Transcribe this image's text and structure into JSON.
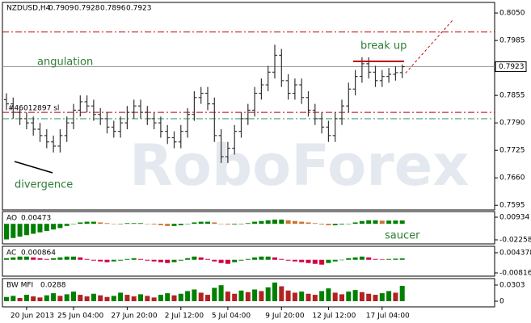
{
  "chart_data": [
    {
      "type": "ohlc",
      "title": "NZDUSD,H4",
      "categories": [
        null,
        null,
        null,
        "20 Jun 2013",
        null,
        null,
        null,
        null,
        null,
        null,
        "25 Jun 04:00",
        null,
        null,
        null,
        null,
        null,
        null,
        null,
        "27 Jun 20:00",
        null,
        null,
        null,
        null,
        null,
        null,
        null,
        "2 Jul 12:00",
        null,
        null,
        null,
        null,
        null,
        null,
        "5 Jul 04:00",
        null,
        null,
        null,
        null,
        null,
        null,
        null,
        "9 Jul 20:00",
        null,
        null,
        null,
        null,
        null,
        null,
        "12 Jul 12:00",
        null,
        null,
        null,
        null,
        null,
        null,
        null,
        "17 Jul 04:00",
        null,
        null,
        null
      ],
      "ohlc": [
        [
          0.7845,
          0.786,
          0.782,
          0.7835
        ],
        [
          0.7835,
          0.785,
          0.78,
          0.7815
        ],
        [
          0.7815,
          0.783,
          0.7785,
          0.78
        ],
        [
          0.78,
          0.7815,
          0.7775,
          0.779
        ],
        [
          0.779,
          0.7805,
          0.776,
          0.7775
        ],
        [
          0.7775,
          0.779,
          0.7745,
          0.776
        ],
        [
          0.776,
          0.7775,
          0.773,
          0.7745
        ],
        [
          0.7745,
          0.776,
          0.772,
          0.7735
        ],
        [
          0.7735,
          0.7775,
          0.772,
          0.776
        ],
        [
          0.776,
          0.7805,
          0.7745,
          0.779
        ],
        [
          0.779,
          0.7835,
          0.7775,
          0.782
        ],
        [
          0.782,
          0.7855,
          0.7805,
          0.784
        ],
        [
          0.784,
          0.7855,
          0.7815,
          0.783
        ],
        [
          0.783,
          0.7845,
          0.7795,
          0.781
        ],
        [
          0.781,
          0.7825,
          0.7785,
          0.78
        ],
        [
          0.78,
          0.7815,
          0.7765,
          0.778
        ],
        [
          0.778,
          0.7795,
          0.7755,
          0.777
        ],
        [
          0.777,
          0.7805,
          0.7755,
          0.779
        ],
        [
          0.779,
          0.783,
          0.7775,
          0.7815
        ],
        [
          0.7815,
          0.7845,
          0.78,
          0.783
        ],
        [
          0.783,
          0.7845,
          0.78,
          0.7815
        ],
        [
          0.7815,
          0.783,
          0.7785,
          0.78
        ],
        [
          0.78,
          0.7815,
          0.7775,
          0.779
        ],
        [
          0.779,
          0.7805,
          0.7755,
          0.777
        ],
        [
          0.777,
          0.7785,
          0.774,
          0.7755
        ],
        [
          0.7755,
          0.777,
          0.773,
          0.7745
        ],
        [
          0.7745,
          0.7785,
          0.773,
          0.777
        ],
        [
          0.777,
          0.7825,
          0.7755,
          0.781
        ],
        [
          0.781,
          0.7865,
          0.7795,
          0.785
        ],
        [
          0.785,
          0.7875,
          0.7835,
          0.786
        ],
        [
          0.786,
          0.7875,
          0.782,
          0.7835
        ],
        [
          0.7835,
          0.785,
          0.7745,
          0.776
        ],
        [
          0.776,
          0.7775,
          0.7695,
          0.771
        ],
        [
          0.771,
          0.7745,
          0.7695,
          0.773
        ],
        [
          0.773,
          0.7785,
          0.7715,
          0.777
        ],
        [
          0.777,
          0.7815,
          0.7755,
          0.78
        ],
        [
          0.78,
          0.7835,
          0.7785,
          0.782
        ],
        [
          0.782,
          0.7875,
          0.7805,
          0.786
        ],
        [
          0.786,
          0.7895,
          0.7845,
          0.788
        ],
        [
          0.788,
          0.7925,
          0.7865,
          0.791
        ],
        [
          0.791,
          0.7975,
          0.7895,
          0.795
        ],
        [
          0.795,
          0.7965,
          0.7875,
          0.789
        ],
        [
          0.789,
          0.7905,
          0.7845,
          0.786
        ],
        [
          0.786,
          0.7895,
          0.7845,
          0.788
        ],
        [
          0.788,
          0.7895,
          0.7835,
          0.785
        ],
        [
          0.785,
          0.7865,
          0.7805,
          0.782
        ],
        [
          0.782,
          0.7835,
          0.7785,
          0.78
        ],
        [
          0.78,
          0.7815,
          0.7765,
          0.778
        ],
        [
          0.778,
          0.7795,
          0.7745,
          0.776
        ],
        [
          0.776,
          0.7815,
          0.7745,
          0.78
        ],
        [
          0.78,
          0.7845,
          0.7785,
          0.783
        ],
        [
          0.783,
          0.7885,
          0.7815,
          0.787
        ],
        [
          0.787,
          0.7915,
          0.7855,
          0.79
        ],
        [
          0.79,
          0.7945,
          0.7885,
          0.793
        ],
        [
          0.793,
          0.7945,
          0.7895,
          0.791
        ],
        [
          0.791,
          0.7925,
          0.7875,
          0.789
        ],
        [
          0.789,
          0.7915,
          0.7875,
          0.79
        ],
        [
          0.79,
          0.792,
          0.7885,
          0.7905
        ],
        [
          0.7905,
          0.7924,
          0.789,
          0.7909
        ],
        [
          0.7909,
          0.7928,
          0.7896,
          0.7923
        ]
      ],
      "color": "#333333",
      "ylim": [
        0.7584,
        0.8075
      ],
      "yticks": [
        {
          "value": 0.805,
          "label": "0.8050"
        },
        0.7985,
        0.7855,
        {
          "value": 0.779,
          "label": "0.7790"
        },
        0.7725,
        {
          "value": 0.766,
          "label": "0.7660"
        },
        0.7595
      ],
      "levels": [
        {
          "value": 0.8005,
          "color": "#c00000",
          "style": "dashdot"
        },
        {
          "value": 0.7815,
          "color": "#c00000",
          "style": "dashdot",
          "label": "#46012897 sl"
        },
        {
          "value": 0.78,
          "color": "#2e8b57",
          "style": "dashdot"
        }
      ],
      "annotations": [
        "angulation",
        "break up",
        "divergence",
        "saucer"
      ],
      "watermark": "RoboForex"
    },
    {
      "type": "bar",
      "title": "AO",
      "up_color": "#008000",
      "down_color": "#c87533",
      "values": [
        -0.022,
        -0.02,
        -0.018,
        -0.016,
        -0.014,
        -0.012,
        -0.01,
        -0.008,
        -0.006,
        -0.003,
        0,
        0.002,
        0.003,
        0.003,
        0.002,
        0.001,
        0,
        0,
        0.001,
        0.001,
        0.001,
        0,
        -0.001,
        -0.002,
        -0.003,
        -0.003,
        -0.002,
        0,
        0.002,
        0.003,
        0.003,
        0.002,
        0,
        -0.001,
        -0.001,
        0,
        0.001,
        0.003,
        0.004,
        0.005,
        0.006,
        0.006,
        0.005,
        0.004,
        0.003,
        0.002,
        0.001,
        -0.001,
        -0.002,
        -0.002,
        -0.001,
        0,
        0.002,
        0.004,
        0.005,
        0.005,
        0.0045,
        0.0046,
        0.0047,
        0.00473
      ],
      "ylim": [
        -0.02828,
        0.01732
      ],
      "yticks": [
        0.00934,
        -0.02258
      ]
    },
    {
      "type": "bar",
      "title": "AC",
      "up_color": "#008000",
      "down_color": "#d00040",
      "values": [
        0.001,
        0.0015,
        0.002,
        0.002,
        0.0015,
        0.001,
        0.0005,
        0.001,
        0.0015,
        0.002,
        0.002,
        0.0015,
        0.0005,
        -0.0005,
        -0.001,
        -0.0015,
        -0.001,
        -0.0005,
        0.0005,
        0.001,
        0.0005,
        -0.0005,
        -0.001,
        -0.0015,
        -0.002,
        -0.0015,
        -0.0005,
        0.001,
        0.002,
        0.0015,
        0.0005,
        -0.001,
        -0.002,
        -0.0025,
        -0.0015,
        -0.0005,
        0.0005,
        0.0015,
        0.002,
        0.002,
        0.0015,
        0.0005,
        -0.0005,
        -0.001,
        -0.0015,
        -0.002,
        -0.0025,
        -0.003,
        -0.002,
        -0.001,
        0,
        0.001,
        0.0015,
        0.002,
        0.0015,
        0.0005,
        0.0003,
        0.0005,
        0.0007,
        0.000864
      ],
      "ylim": [
        -0.01017,
        0.00839
      ],
      "yticks": [
        0.004378,
        -0.00816
      ]
    },
    {
      "type": "bar",
      "title": "BW MFI",
      "up_color": "#008000",
      "down_color": "#b22222",
      "values": [
        0.008,
        0.01,
        0.006,
        0.012,
        0.009,
        0.007,
        0.011,
        0.015,
        0.01,
        0.013,
        0.018,
        0.012,
        0.009,
        0.014,
        0.011,
        0.008,
        0.01,
        0.016,
        0.012,
        0.009,
        0.013,
        0.01,
        0.007,
        0.012,
        0.015,
        0.011,
        0.014,
        0.019,
        0.022,
        0.016,
        0.012,
        0.025,
        0.03,
        0.018,
        0.014,
        0.02,
        0.017,
        0.022,
        0.019,
        0.026,
        0.035,
        0.028,
        0.02,
        0.016,
        0.018,
        0.014,
        0.012,
        0.019,
        0.024,
        0.016,
        0.013,
        0.018,
        0.021,
        0.017,
        0.014,
        0.012,
        0.015,
        0.019,
        0.016,
        0.0288
      ],
      "ylim": [
        -0.0106,
        0.04242
      ],
      "yticks": [
        0.0303,
        0
      ]
    }
  ]
}
